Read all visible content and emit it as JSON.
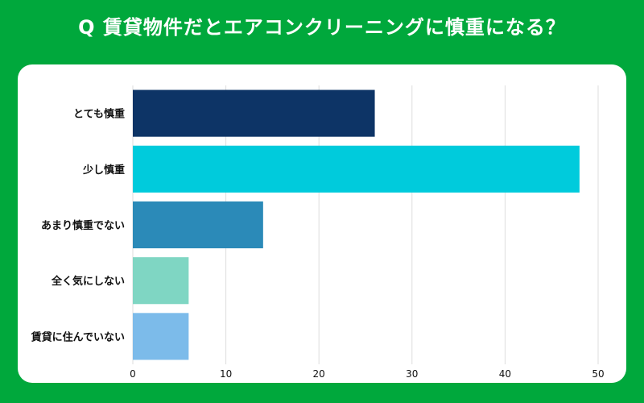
{
  "title": "Q 賃貸物件だとエアコンクリーニングに慎重になる？",
  "chart_data": {
    "type": "bar",
    "orientation": "horizontal",
    "categories": [
      "とても慎重",
      "少し慎重",
      "あまり慎重でない",
      "全く気にしない",
      "賃貸に住んでいない"
    ],
    "values": [
      26,
      48,
      14,
      6,
      6
    ],
    "colors": [
      "#0d3466",
      "#00cbdc",
      "#2b8ab8",
      "#7fd6c3",
      "#7cbbea"
    ],
    "xticks": [
      0,
      10,
      20,
      30,
      40,
      50
    ],
    "xlim": [
      0,
      52
    ],
    "grid": true
  }
}
